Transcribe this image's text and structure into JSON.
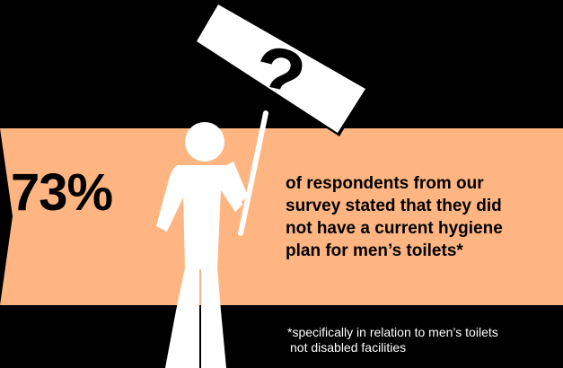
{
  "colors": {
    "background": "#000000",
    "band": "#FFB581",
    "figure": "#FFFFFF",
    "text_dark": "#000000",
    "text_light": "#FFFFFF"
  },
  "sign": {
    "symbol": "?",
    "icon": "question-mark-icon"
  },
  "figure_icon": "person-holding-sign-icon",
  "stat": {
    "value": "73%",
    "statement_lines": [
      "of respondents from our",
      "survey stated that they did",
      "not have a current hygiene",
      "plan for men’s toilets*"
    ]
  },
  "footnote": {
    "lines": [
      "*specifically in relation to men’s toilets",
      "not disabled facilities"
    ]
  }
}
